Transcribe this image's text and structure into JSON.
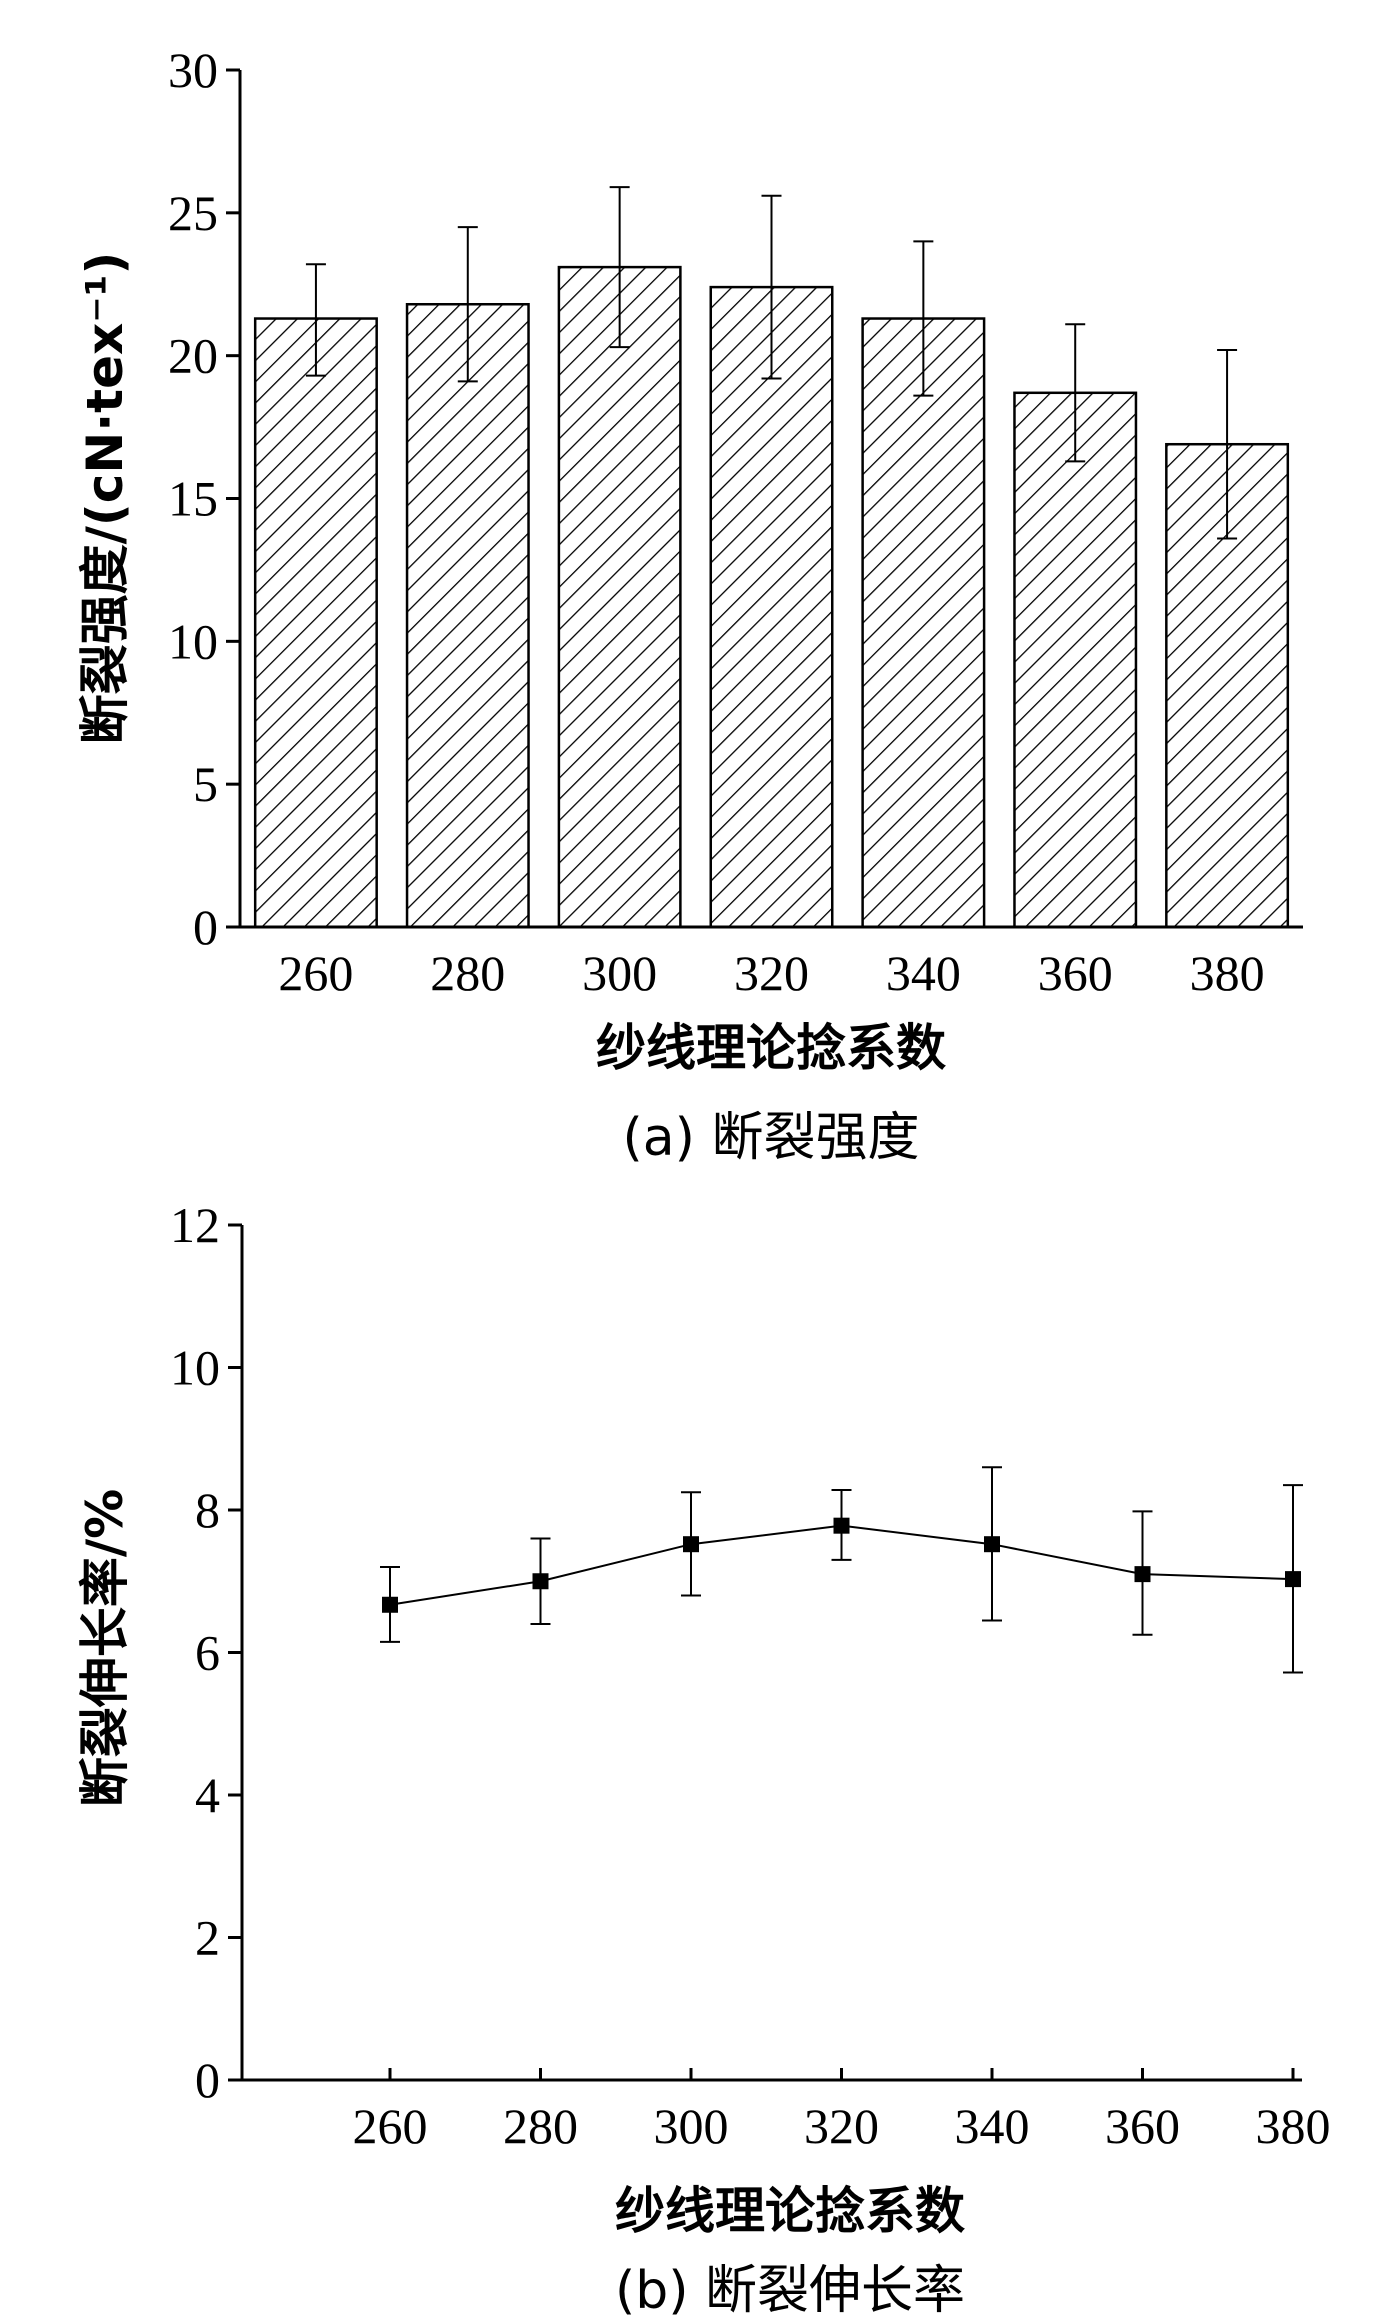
{
  "chart_data": [
    {
      "type": "bar",
      "caption": "(a) 断裂强度",
      "xlabel": "纱线理论捻系数",
      "ylabel": "断裂强度/(cN·tex⁻¹)",
      "categories": [
        "260",
        "280",
        "300",
        "320",
        "340",
        "360",
        "380"
      ],
      "values": [
        21.3,
        21.8,
        23.1,
        22.4,
        21.3,
        18.7,
        16.9
      ],
      "error_low": [
        19.3,
        19.1,
        20.3,
        19.2,
        18.6,
        16.3,
        13.6
      ],
      "error_high": [
        23.2,
        24.5,
        25.9,
        25.6,
        24.0,
        21.1,
        20.2
      ],
      "ylim": [
        0,
        30
      ],
      "yticks": [
        "0",
        "5",
        "10",
        "15",
        "20",
        "25",
        "30"
      ],
      "bar_fill": "hatched",
      "grid": false,
      "legend": "none"
    },
    {
      "type": "line",
      "caption": "(b) 断裂伸长率",
      "xlabel": "纱线理论捻系数",
      "ylabel": "断裂伸长率/%",
      "x": [
        260,
        280,
        300,
        320,
        340,
        360,
        380
      ],
      "xticks": [
        "260",
        "280",
        "300",
        "320",
        "340",
        "360",
        "380"
      ],
      "values": [
        6.67,
        7.0,
        7.52,
        7.78,
        7.52,
        7.1,
        7.03
      ],
      "error_low": [
        6.15,
        6.4,
        6.8,
        7.3,
        6.45,
        6.25,
        5.72
      ],
      "error_high": [
        7.2,
        7.6,
        8.25,
        8.28,
        8.6,
        7.98,
        8.35
      ],
      "ylim": [
        0,
        12
      ],
      "yticks": [
        "0",
        "2",
        "4",
        "6",
        "8",
        "10",
        "12"
      ],
      "marker": "square",
      "grid": false,
      "legend": "none"
    }
  ]
}
